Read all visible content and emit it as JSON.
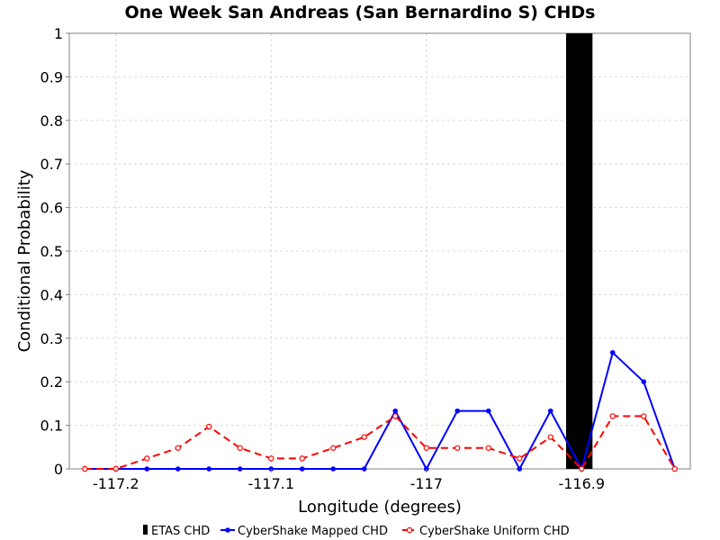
{
  "chart_data": {
    "type": "line",
    "title": "One Week San Andreas (San Bernardino S) CHDs",
    "xlabel": "Longitude (degrees)",
    "ylabel": "Conditional Probability",
    "xlim": [
      -117.23,
      -116.83
    ],
    "ylim": [
      0,
      1
    ],
    "xticks": [
      -117.2,
      -117.1,
      -117.0,
      -116.9
    ],
    "xtick_labels": [
      "-117.2",
      "-117.1",
      "-117",
      "-116.9"
    ],
    "yticks": [
      0,
      0.1,
      0.2,
      0.3,
      0.4,
      0.5,
      0.6,
      0.7,
      0.8,
      0.9,
      1
    ],
    "ytick_labels": [
      "0",
      "0.1",
      "0.2",
      "0.3",
      "0.4",
      "0.5",
      "0.6",
      "0.7",
      "0.8",
      "0.9",
      "1"
    ],
    "grid": true,
    "legend_position": "bottom",
    "etas": {
      "name": "ETAS CHD",
      "x_start": -116.91,
      "x_end": -116.893,
      "value": 1.0,
      "color": "#000000"
    },
    "series": [
      {
        "name": "CyberShake Mapped CHD",
        "color": "#0000ff",
        "style": "solid",
        "marker": "filled-circle",
        "x": [
          -117.22,
          -117.2,
          -117.18,
          -117.16,
          -117.14,
          -117.12,
          -117.1,
          -117.08,
          -117.06,
          -117.04,
          -117.02,
          -117.0,
          -116.98,
          -116.96,
          -116.94,
          -116.92,
          -116.9,
          -116.88,
          -116.86,
          -116.84
        ],
        "values": [
          0,
          0,
          0,
          0,
          0,
          0,
          0,
          0,
          0,
          0,
          0.133,
          0,
          0.133,
          0.133,
          0,
          0.133,
          0,
          0.267,
          0.2,
          0
        ]
      },
      {
        "name": "CyberShake Uniform CHD",
        "color": "#ff0000",
        "style": "dashed",
        "marker": "open-circle",
        "x": [
          -117.22,
          -117.2,
          -117.18,
          -117.16,
          -117.14,
          -117.12,
          -117.1,
          -117.08,
          -117.06,
          -117.04,
          -117.02,
          -117.0,
          -116.98,
          -116.96,
          -116.94,
          -116.92,
          -116.9,
          -116.88,
          -116.86,
          -116.84
        ],
        "values": [
          0,
          0,
          0.024,
          0.048,
          0.097,
          0.048,
          0.024,
          0.024,
          0.048,
          0.073,
          0.121,
          0.048,
          0.048,
          0.048,
          0.024,
          0.073,
          0,
          0.121,
          0.121,
          0
        ]
      }
    ]
  }
}
